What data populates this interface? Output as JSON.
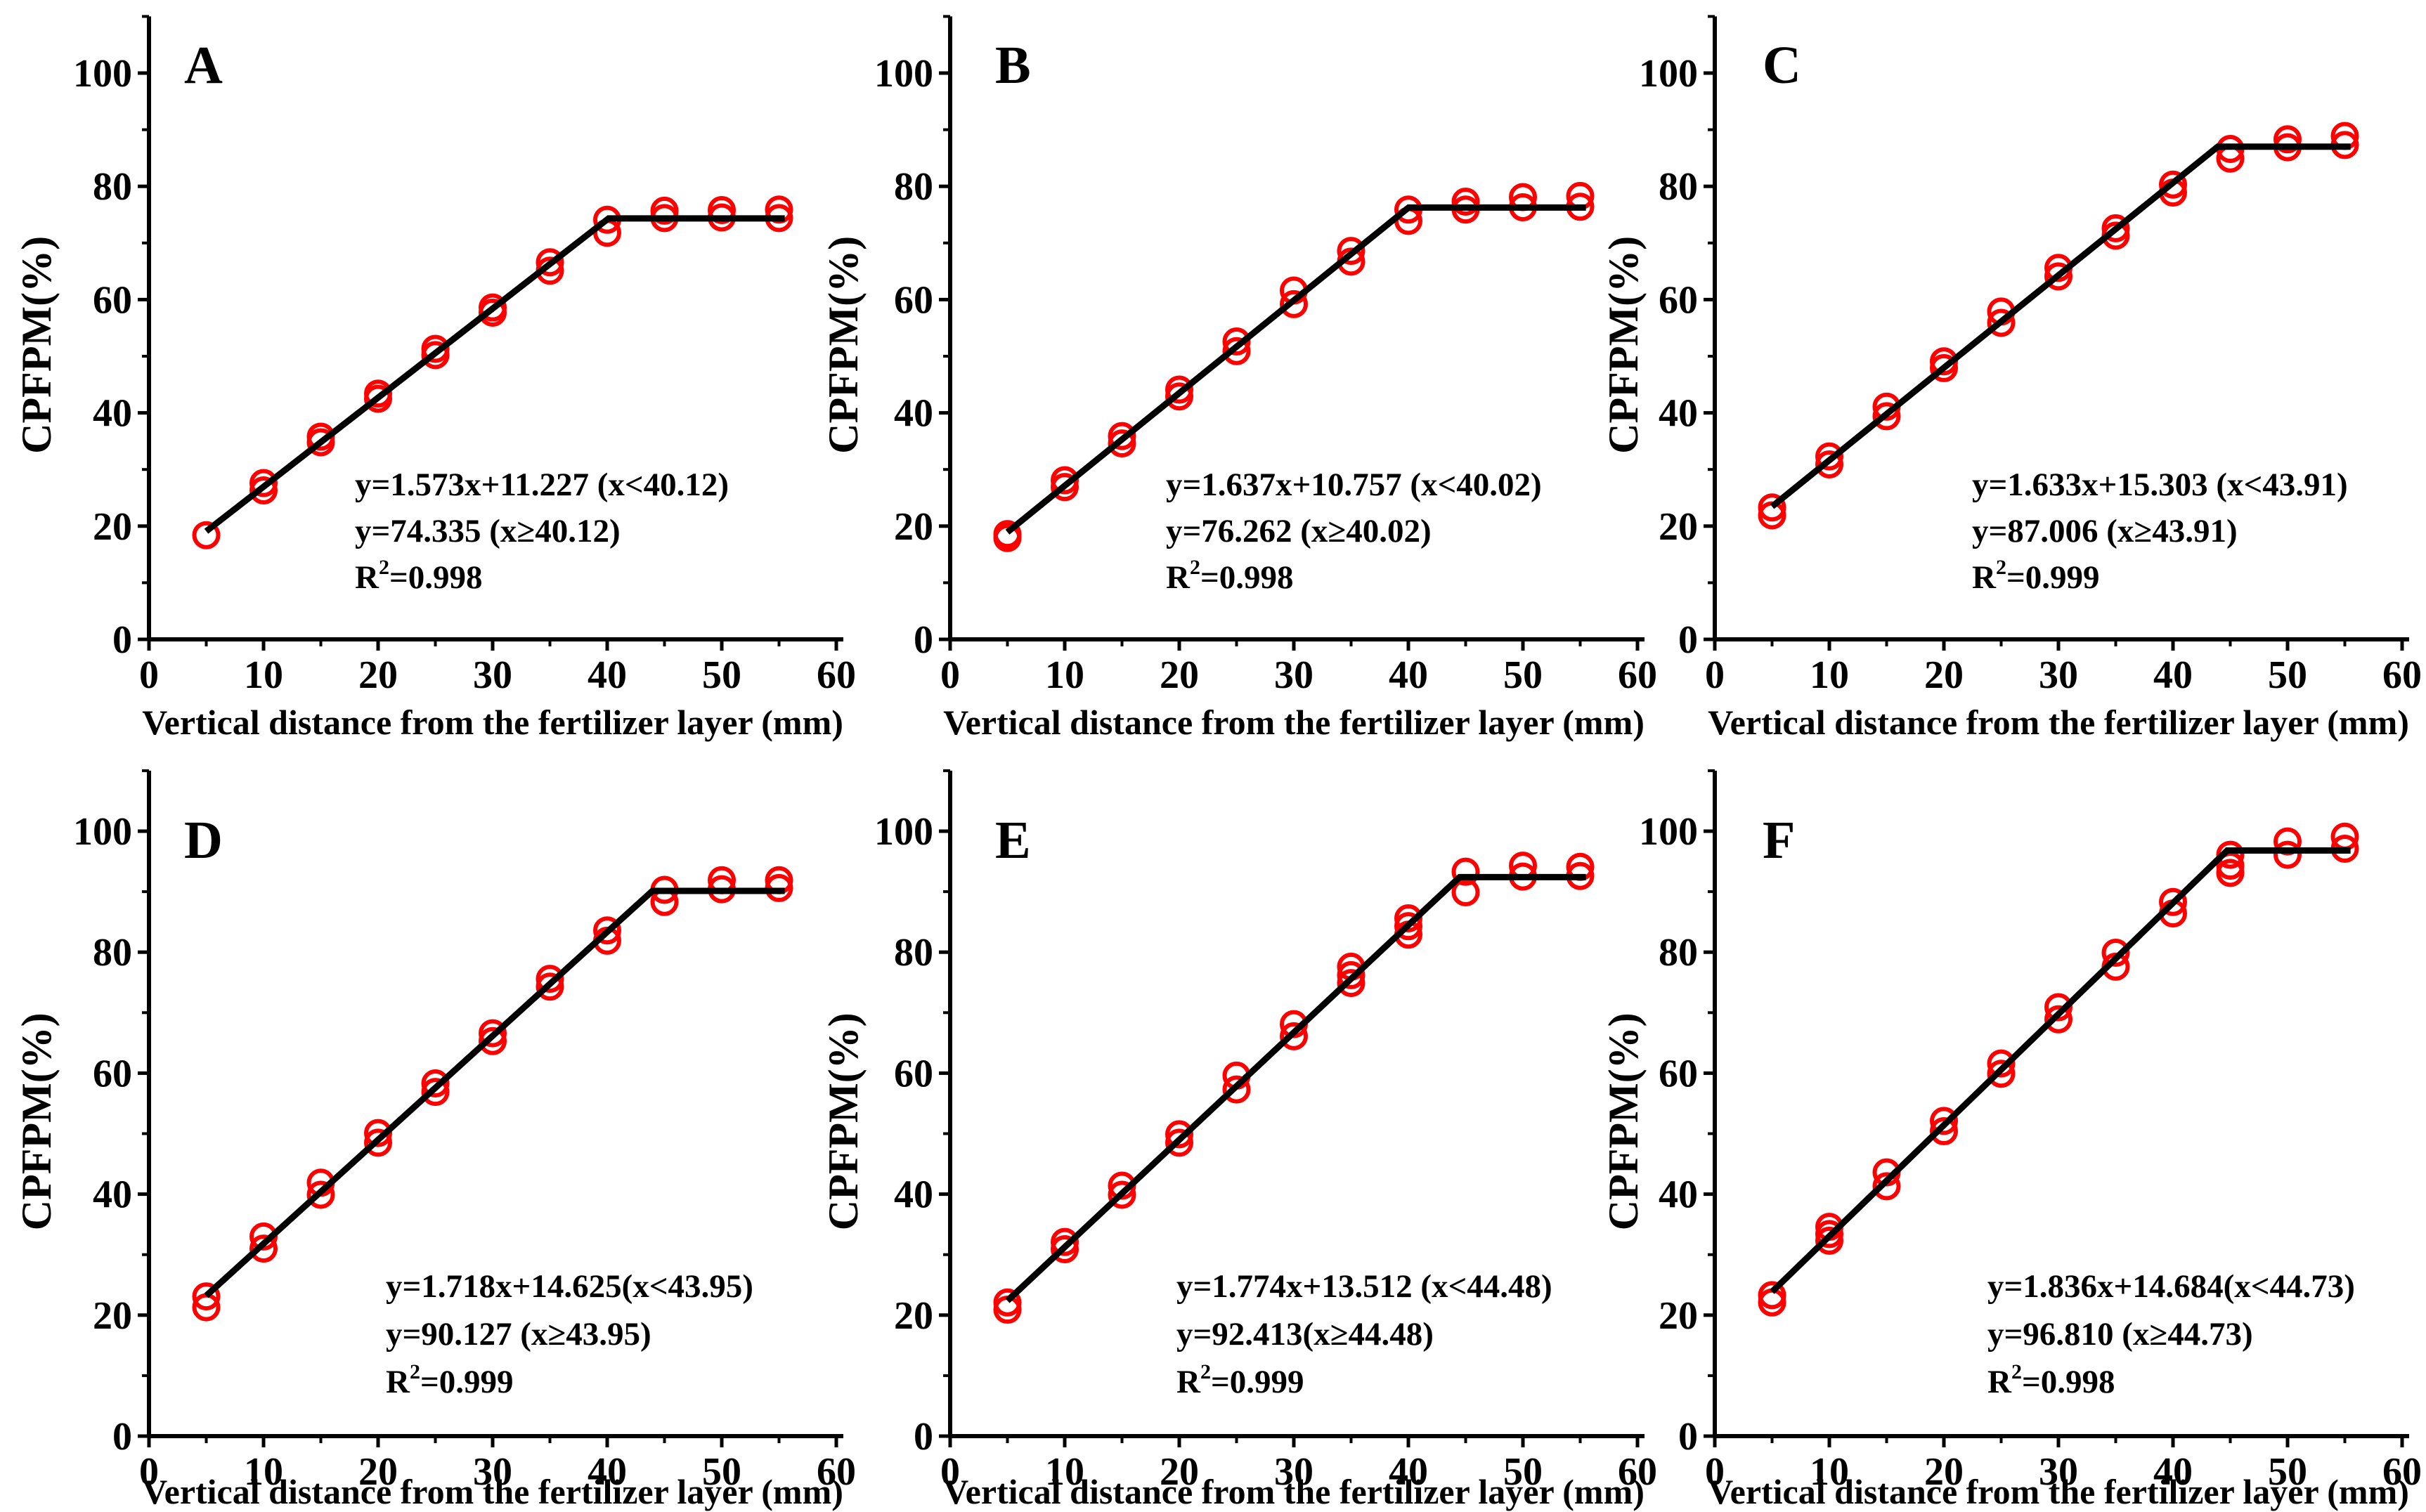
{
  "figure": {
    "background": "#ffffff",
    "point_color": "#ff0000",
    "line_color": "#000000",
    "axis_color": "#000000",
    "x_axis_label": "Vertical distance from the fertilizer layer (mm)",
    "y_axis_label": "CPFPM(%)",
    "x_major_ticks": [
      0,
      10,
      20,
      30,
      40,
      50,
      60
    ],
    "x_minor_ticks": [
      5,
      15,
      25,
      35,
      45,
      55
    ],
    "y_major_ticks": [
      0,
      20,
      40,
      60,
      80,
      100
    ],
    "y_minor_ticks": [
      10,
      30,
      50,
      70,
      90,
      110
    ],
    "xlim": [
      0,
      60
    ],
    "ylim": [
      0,
      110
    ],
    "grid": false,
    "legend": "none"
  },
  "chart_data": [
    {
      "panel": "A",
      "type": "scatter",
      "xlabel": "Vertical distance from the fertilizer layer (mm)",
      "ylabel": "CPFPM(%)",
      "fit": {
        "slope": 1.573,
        "intercept": 11.227,
        "plateau": 74.335,
        "breakpoint": 40.12,
        "r2": 0.998
      },
      "annotation": [
        "y=1.573x+11.227 (x<40.12)",
        "y=74.335 (x≥40.12)",
        "R²=0.998"
      ],
      "points": [
        [
          5,
          18.4
        ],
        [
          10,
          27.6
        ],
        [
          10,
          26.3
        ],
        [
          15,
          35.8
        ],
        [
          15,
          34.8
        ],
        [
          20,
          43.4
        ],
        [
          20,
          42.5
        ],
        [
          25,
          51.3
        ],
        [
          25,
          50.2
        ],
        [
          30,
          58.6
        ],
        [
          30,
          57.7
        ],
        [
          35,
          66.6
        ],
        [
          35,
          65.1
        ],
        [
          40,
          74.1
        ],
        [
          40,
          71.8
        ],
        [
          45,
          75.7
        ],
        [
          45,
          74.4
        ],
        [
          50,
          75.8
        ],
        [
          50,
          74.5
        ],
        [
          55,
          75.9
        ],
        [
          55,
          74.4
        ]
      ]
    },
    {
      "panel": "B",
      "type": "scatter",
      "xlabel": "Vertical distance from the fertilizer layer (mm)",
      "ylabel": "CPFPM(%)",
      "fit": {
        "slope": 1.637,
        "intercept": 10.757,
        "plateau": 76.262,
        "breakpoint": 40.02,
        "r2": 0.998
      },
      "annotation": [
        "y=1.637x+10.757 (x<40.02)",
        "y=76.262 (x≥40.02)",
        "R²=0.998"
      ],
      "points": [
        [
          5,
          18.6
        ],
        [
          5,
          17.9
        ],
        [
          10,
          28.1
        ],
        [
          10,
          26.9
        ],
        [
          15,
          35.9
        ],
        [
          15,
          34.6
        ],
        [
          20,
          44.1
        ],
        [
          20,
          42.9
        ],
        [
          25,
          52.6
        ],
        [
          25,
          50.9
        ],
        [
          30,
          61.6
        ],
        [
          30,
          59.2
        ],
        [
          35,
          68.6
        ],
        [
          35,
          66.7
        ],
        [
          40,
          75.9
        ],
        [
          40,
          73.9
        ],
        [
          45,
          77.3
        ],
        [
          45,
          75.9
        ],
        [
          50,
          78.1
        ],
        [
          50,
          76.3
        ],
        [
          55,
          78.3
        ],
        [
          55,
          76.4
        ]
      ]
    },
    {
      "panel": "C",
      "type": "scatter",
      "xlabel": "Vertical distance from the fertilizer layer (mm)",
      "ylabel": "CPFPM(%)",
      "fit": {
        "slope": 1.633,
        "intercept": 15.303,
        "plateau": 87.006,
        "breakpoint": 43.91,
        "r2": 0.999
      },
      "annotation": [
        "y=1.633x+15.303 (x<43.91)",
        "y=87.006 (x≥43.91)",
        "R²=0.999"
      ],
      "points": [
        [
          5,
          23.3
        ],
        [
          5,
          21.9
        ],
        [
          10,
          32.3
        ],
        [
          10,
          30.9
        ],
        [
          15,
          41.1
        ],
        [
          15,
          39.4
        ],
        [
          20,
          49.1
        ],
        [
          20,
          47.9
        ],
        [
          25,
          57.9
        ],
        [
          25,
          55.9
        ],
        [
          30,
          65.6
        ],
        [
          30,
          64.1
        ],
        [
          35,
          72.6
        ],
        [
          35,
          71.3
        ],
        [
          40,
          80.3
        ],
        [
          40,
          78.9
        ],
        [
          45,
          86.6
        ],
        [
          45,
          84.9
        ],
        [
          50,
          88.3
        ],
        [
          50,
          86.9
        ],
        [
          55,
          88.9
        ],
        [
          55,
          87.3
        ]
      ]
    },
    {
      "panel": "D",
      "type": "scatter",
      "xlabel": "Vertical distance from the fertilizer layer (mm)",
      "ylabel": "CPFPM(%)",
      "fit": {
        "slope": 1.718,
        "intercept": 14.625,
        "plateau": 90.127,
        "breakpoint": 43.95,
        "r2": 0.999
      },
      "annotation": [
        "y=1.718x+14.625(x<43.95)",
        "y=90.127 (x≥43.95)",
        "R²=0.999"
      ],
      "points": [
        [
          5,
          23.1
        ],
        [
          5,
          21.3
        ],
        [
          10,
          33.0
        ],
        [
          10,
          31.0
        ],
        [
          15,
          41.9
        ],
        [
          15,
          39.9
        ],
        [
          20,
          50.1
        ],
        [
          20,
          48.5
        ],
        [
          25,
          58.3
        ],
        [
          25,
          56.9
        ],
        [
          30,
          66.6
        ],
        [
          30,
          65.3
        ],
        [
          35,
          75.6
        ],
        [
          35,
          74.3
        ],
        [
          40,
          83.6
        ],
        [
          40,
          81.9
        ],
        [
          45,
          90.3
        ],
        [
          45,
          88.3
        ],
        [
          50,
          91.9
        ],
        [
          50,
          90.4
        ],
        [
          55,
          91.9
        ],
        [
          55,
          90.6
        ]
      ]
    },
    {
      "panel": "E",
      "type": "scatter",
      "xlabel": "Vertical distance from the fertilizer layer (mm)",
      "ylabel": "CPFPM(%)",
      "fit": {
        "slope": 1.774,
        "intercept": 13.512,
        "plateau": 92.413,
        "breakpoint": 44.48,
        "r2": 0.999
      },
      "annotation": [
        "y=1.774x+13.512 (x<44.48)",
        "y=92.413(x≥44.48)",
        "R²=0.999"
      ],
      "points": [
        [
          5,
          22.1
        ],
        [
          5,
          20.9
        ],
        [
          10,
          32.1
        ],
        [
          10,
          30.9
        ],
        [
          15,
          41.4
        ],
        [
          15,
          39.9
        ],
        [
          20,
          49.9
        ],
        [
          20,
          48.5
        ],
        [
          25,
          59.6
        ],
        [
          25,
          57.3
        ],
        [
          30,
          68.1
        ],
        [
          30,
          66.1
        ],
        [
          35,
          77.6
        ],
        [
          35,
          76.2
        ],
        [
          35,
          74.9
        ],
        [
          40,
          85.6
        ],
        [
          40,
          84.3
        ],
        [
          40,
          82.9
        ],
        [
          45,
          93.3
        ],
        [
          45,
          89.9
        ],
        [
          50,
          94.3
        ],
        [
          50,
          92.5
        ],
        [
          55,
          94.1
        ],
        [
          55,
          92.6
        ]
      ]
    },
    {
      "panel": "F",
      "type": "scatter",
      "xlabel": "Vertical distance from the fertilizer layer (mm)",
      "ylabel": "CPFPM(%)",
      "fit": {
        "slope": 1.836,
        "intercept": 14.684,
        "plateau": 96.81,
        "breakpoint": 44.73,
        "r2": 0.998
      },
      "annotation": [
        "y=1.836x+14.684(x<44.73)",
        "y=96.810 (x≥44.73)",
        "R²=0.998"
      ],
      "points": [
        [
          5,
          23.3
        ],
        [
          5,
          22.1
        ],
        [
          10,
          34.6
        ],
        [
          10,
          33.4
        ],
        [
          10,
          32.3
        ],
        [
          15,
          43.6
        ],
        [
          15,
          41.3
        ],
        [
          20,
          52.1
        ],
        [
          20,
          50.4
        ],
        [
          25,
          61.6
        ],
        [
          25,
          59.9
        ],
        [
          30,
          70.9
        ],
        [
          30,
          68.9
        ],
        [
          35,
          79.9
        ],
        [
          35,
          77.6
        ],
        [
          40,
          88.3
        ],
        [
          40,
          86.4
        ],
        [
          45,
          96.1
        ],
        [
          45,
          94.3
        ],
        [
          45,
          93.1
        ],
        [
          50,
          98.3
        ],
        [
          50,
          96.1
        ],
        [
          55,
          99.1
        ],
        [
          55,
          97.1
        ]
      ]
    }
  ]
}
